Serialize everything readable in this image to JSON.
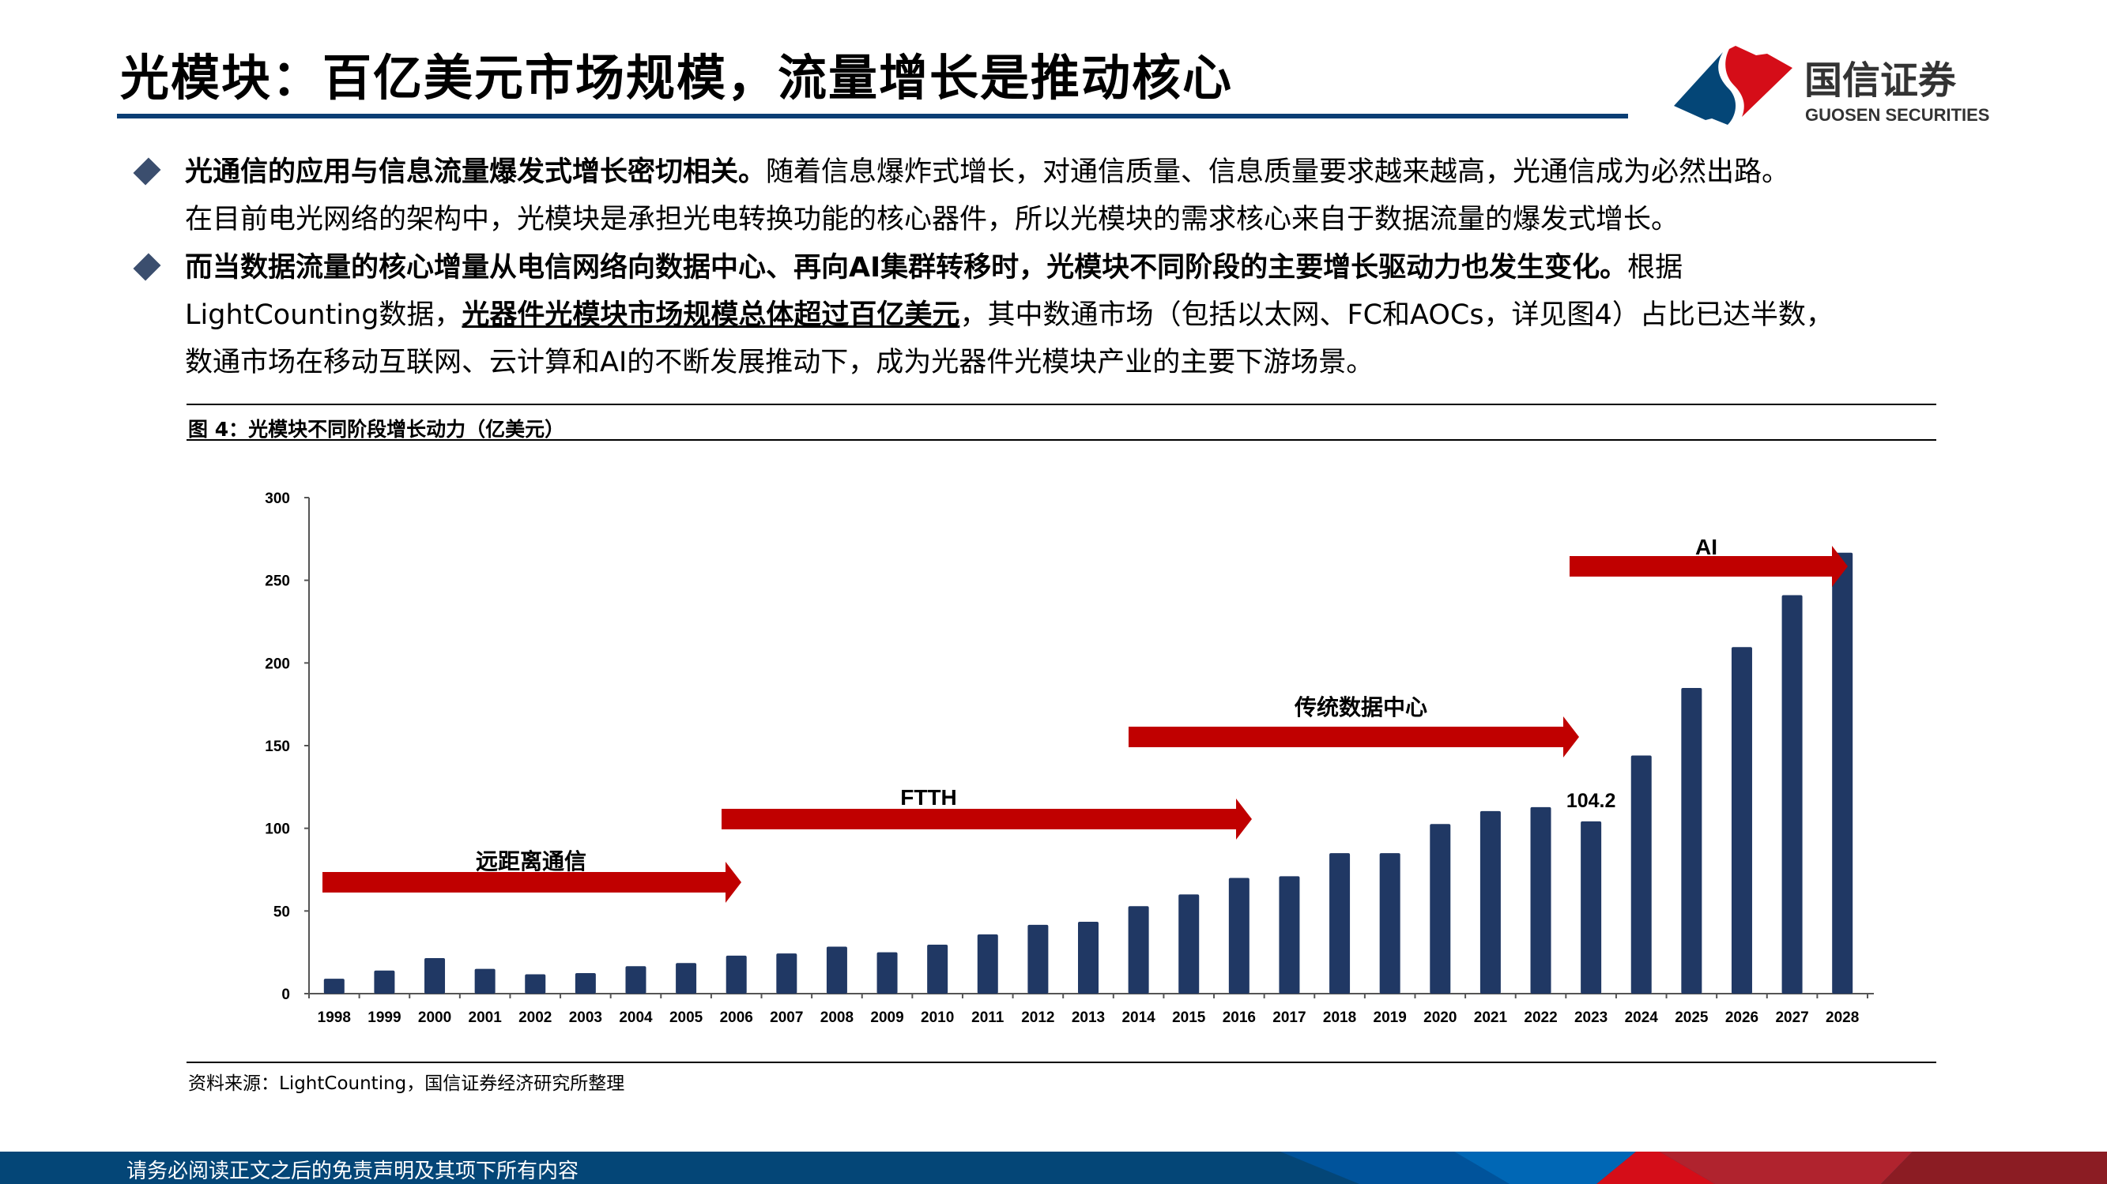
{
  "header": {
    "title": "光模块：百亿美元市场规模，流量增长是推动核心",
    "logo": {
      "cn": "国信证券",
      "en": "GUOSEN SECURITIES"
    }
  },
  "bullets": [
    {
      "bold": "光通信的应用与信息流量爆发式增长密切相关。",
      "text_line1": "随着信息爆炸式增长，对通信质量、信息质量要求越来越高，光通信成为必然出路。",
      "text_line2": "在目前电光网络的架构中，光模块是承担光电转换功能的核心器件，所以光模块的需求核心来自于数据流量的爆发式增长。"
    },
    {
      "bold": "而当数据流量的核心增量从电信网络向数据中心、再向AI集群转移时，光模块不同阶段的主要增长驱动力也发生变化。",
      "text_after_bold": "根据",
      "line2_prefix": "LightCounting数据，",
      "line2_underlined": "光器件光模块市场规模总体超过百亿美元",
      "line2_suffix": "，其中数通市场（包括以太网、FC和AOCs，详见图4）占比已达半数，",
      "line3": "数通市场在移动互联网、云计算和AI的不断发展推动下，成为光器件光模块产业的主要下游场景。"
    }
  ],
  "figure": {
    "caption": "图 4：光模块不同阶段增长动力（亿美元）",
    "source": "资料来源：LightCounting，国信证券经济研究所整理"
  },
  "chart_data": {
    "type": "bar",
    "title": "",
    "xlabel": "",
    "ylabel": "",
    "ylim": [
      0,
      300
    ],
    "yticks": [
      0,
      50,
      100,
      150,
      200,
      250,
      300
    ],
    "grid": false,
    "bar_color": "#203864",
    "categories": [
      "1998",
      "1999",
      "2000",
      "2001",
      "2002",
      "2003",
      "2004",
      "2005",
      "2006",
      "2007",
      "2008",
      "2009",
      "2010",
      "2011",
      "2012",
      "2013",
      "2014",
      "2015",
      "2016",
      "2017",
      "2018",
      "2019",
      "2020",
      "2021",
      "2022",
      "2023",
      "2024",
      "2025",
      "2026",
      "2027",
      "2028"
    ],
    "values": [
      9,
      14,
      21.5,
      15,
      11.7,
      12.4,
      16.6,
      18.5,
      23,
      24.3,
      28.4,
      25,
      29.6,
      35.8,
      41.6,
      43.5,
      52.9,
      60,
      70,
      71,
      85,
      85,
      102.6,
      110.4,
      112.8,
      104.2,
      144,
      184.9,
      209.6,
      241,
      266.7
    ],
    "data_labels": [
      {
        "category": "2023",
        "text": "104.2"
      }
    ],
    "annotations": [
      {
        "label": "远距离通信",
        "from": "1998",
        "to": "2006",
        "color": "#c00000"
      },
      {
        "label": "FTTH",
        "from": "2006",
        "to": "2016",
        "color": "#c00000"
      },
      {
        "label": "传统数据中心",
        "from": "2014",
        "to": "2023",
        "color": "#c00000"
      },
      {
        "label": "AI",
        "from": "2023",
        "to": "2028",
        "color": "#c00000"
      }
    ]
  },
  "footer": {
    "disclaimer": "请务必阅读正文之后的免责声明及其项下所有内容"
  },
  "colors": {
    "brand_blue": "#044677",
    "brand_red": "#d50d18",
    "rule_blue": "#0b3e74"
  }
}
